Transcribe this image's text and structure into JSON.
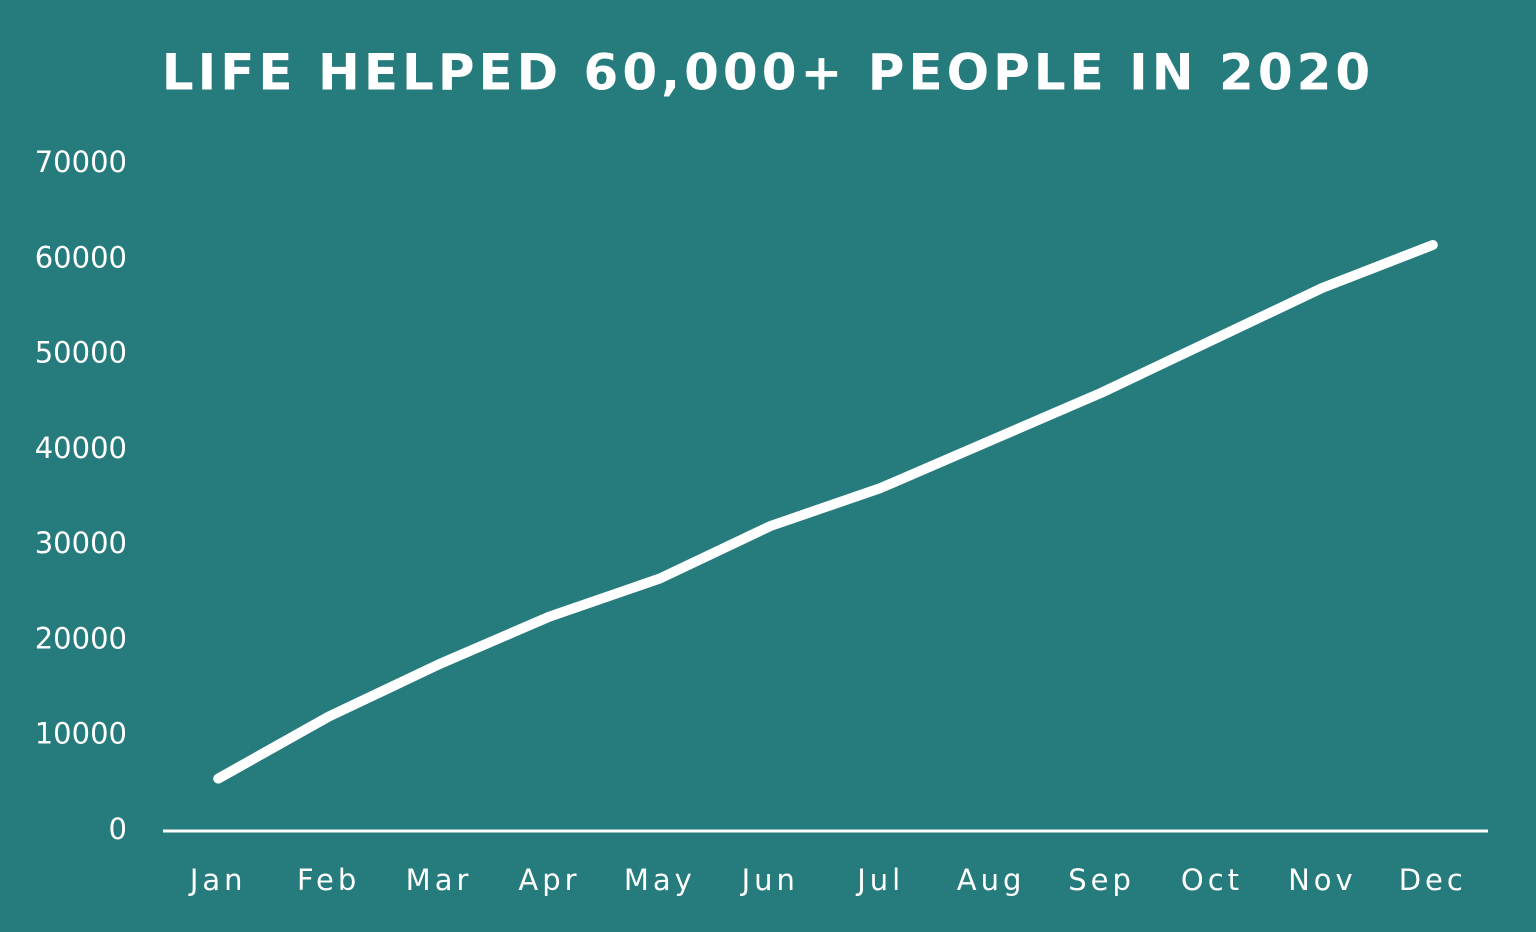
{
  "chart_data": {
    "type": "line",
    "title": "LIFE HELPED 60,000+ PEOPLE IN 2020",
    "categories": [
      "Jan",
      "Feb",
      "Mar",
      "Apr",
      "May",
      "Jun",
      "Jul",
      "Aug",
      "Sep",
      "Oct",
      "Nov",
      "Dec"
    ],
    "values": [
      5500,
      12000,
      17500,
      22500,
      26500,
      32000,
      36000,
      41000,
      46000,
      51500,
      57000,
      61500
    ],
    "color": "#ffffff",
    "ylim": [
      0,
      70000
    ],
    "yticks": [
      0,
      10000,
      20000,
      30000,
      40000,
      50000,
      60000,
      70000
    ],
    "grid": false
  }
}
